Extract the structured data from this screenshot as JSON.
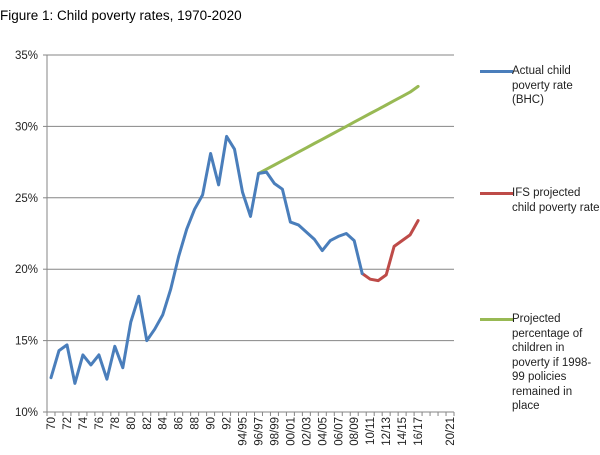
{
  "chart_data": {
    "type": "line",
    "title": "Figure 1: Child poverty rates, 1970-2020",
    "xlabel": "",
    "ylabel": "",
    "ylim": [
      10,
      35
    ],
    "y_ticks": [
      "10%",
      "15%",
      "20%",
      "25%",
      "30%",
      "35%"
    ],
    "grid": true,
    "legend_position": "right",
    "categories": [
      "70",
      "71",
      "72",
      "73",
      "74",
      "75",
      "76",
      "77",
      "78",
      "79",
      "80",
      "81",
      "82",
      "83",
      "84",
      "85",
      "86",
      "87",
      "88",
      "89",
      "90",
      "91",
      "92",
      "93",
      "94/95",
      "95/96",
      "96/97",
      "97/98",
      "98/99",
      "99/00",
      "00/01",
      "01/02",
      "02/03",
      "03/04",
      "04/05",
      "05/06",
      "06/07",
      "07/08",
      "08/09",
      "09/10",
      "10/11",
      "11/12",
      "12/13",
      "13/14",
      "14/15",
      "15/16",
      "16/17",
      "17/18",
      "18/19",
      "19/20",
      "20/21"
    ],
    "x_tick_labels": [
      "70",
      "72",
      "74",
      "76",
      "78",
      "80",
      "82",
      "84",
      "86",
      "88",
      "90",
      "92",
      "94/95",
      "96/97",
      "98/99",
      "00/01",
      "02/03",
      "04/05",
      "06/07",
      "08/09",
      "10/11",
      "12/13",
      "14/15",
      "16/17",
      "20/21"
    ],
    "series": [
      {
        "name": "Actual child poverty rate (BHC)",
        "color": "#4a7ebb",
        "values": [
          12.4,
          14.3,
          14.7,
          12.0,
          14.0,
          13.3,
          14.0,
          12.3,
          14.6,
          13.1,
          16.3,
          18.1,
          15.0,
          15.8,
          16.8,
          18.6,
          20.9,
          22.8,
          24.2,
          25.2,
          28.1,
          25.9,
          29.3,
          28.4,
          25.4,
          23.7,
          26.7,
          26.8,
          26.0,
          25.6,
          23.3,
          23.1,
          22.6,
          22.1,
          21.3,
          22.0,
          22.3,
          22.5,
          22.0,
          19.7,
          null,
          null,
          null,
          null,
          null,
          null,
          null,
          null,
          null,
          null,
          null
        ]
      },
      {
        "name": "IFS projected child poverty rate",
        "color": "#be4b48",
        "values": [
          null,
          null,
          null,
          null,
          null,
          null,
          null,
          null,
          null,
          null,
          null,
          null,
          null,
          null,
          null,
          null,
          null,
          null,
          null,
          null,
          null,
          null,
          null,
          null,
          null,
          null,
          null,
          null,
          null,
          null,
          null,
          null,
          null,
          null,
          null,
          null,
          null,
          null,
          null,
          19.7,
          19.3,
          19.2,
          19.6,
          21.6,
          22.0,
          22.4,
          23.4,
          null,
          null,
          null,
          null
        ]
      },
      {
        "name": "Projected percentage of children in poverty if 1998-99 policies remained in place",
        "color": "#98b954",
        "values": [
          null,
          null,
          null,
          null,
          null,
          null,
          null,
          null,
          null,
          null,
          null,
          null,
          null,
          null,
          null,
          null,
          null,
          null,
          null,
          null,
          null,
          null,
          null,
          null,
          null,
          null,
          26.7,
          27.0,
          27.3,
          27.6,
          27.9,
          28.2,
          28.5,
          28.8,
          29.1,
          29.4,
          29.7,
          30.0,
          30.3,
          30.6,
          30.9,
          31.2,
          31.5,
          31.8,
          32.1,
          32.4,
          32.8,
          null,
          null,
          null,
          null
        ]
      }
    ]
  },
  "legend": [
    {
      "label": "Actual child poverty rate (BHC)",
      "color": "#4a7ebb"
    },
    {
      "label": "IFS projected child poverty rate",
      "color": "#be4b48"
    },
    {
      "label": "Projected percentage of children in poverty if 1998-99 policies remained in place",
      "color": "#98b954"
    }
  ]
}
